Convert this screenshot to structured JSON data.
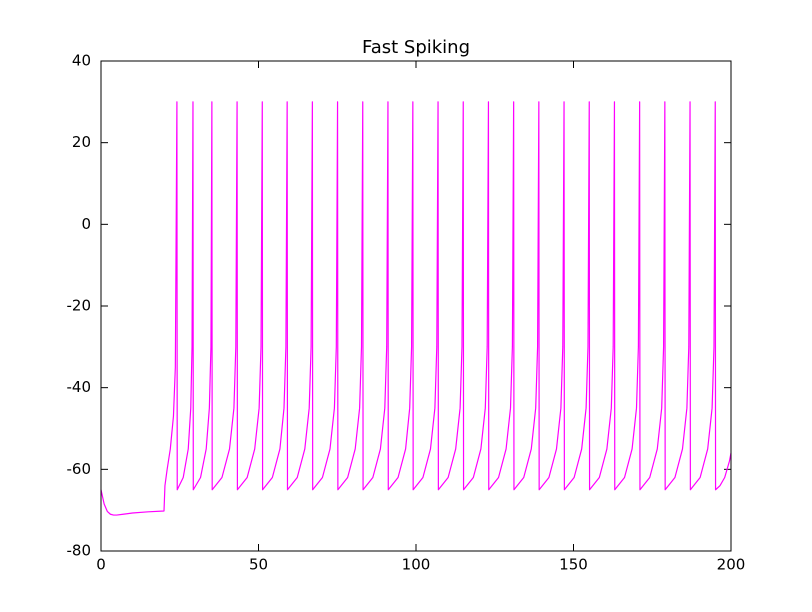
{
  "chart_data": {
    "type": "line",
    "title": "Fast Spiking",
    "x": [
      0,
      1,
      2,
      3,
      4,
      5,
      7,
      10,
      15,
      20,
      20.3,
      21,
      22,
      23,
      23.6,
      24.1,
      24.2,
      26.1,
      27.7,
      28.5,
      28.9,
      29.2,
      29.3,
      31.6,
      33.4,
      34.4,
      34.9,
      35.2,
      35.3,
      38.4,
      40.8,
      42.2,
      42.8,
      43.2,
      43.3,
      46.4,
      48.8,
      50.2,
      50.8,
      51.2,
      51.3,
      54.4,
      56.8,
      58.1,
      58.7,
      59.1,
      59.2,
      62.3,
      64.7,
      66.1,
      66.7,
      67.1,
      67.2,
      70.3,
      72.7,
      74.1,
      74.7,
      75.1,
      75.2,
      78.3,
      80.7,
      82.1,
      82.7,
      83.1,
      83.2,
      86.3,
      88.7,
      90.1,
      90.7,
      91.1,
      91.2,
      94.3,
      96.7,
      98.0,
      98.6,
      99.0,
      99.1,
      102.2,
      104.6,
      106.0,
      106.6,
      107.0,
      107.1,
      110.2,
      112.6,
      114.0,
      114.6,
      115.0,
      115.1,
      118.2,
      120.6,
      122.0,
      122.6,
      123.0,
      123.1,
      126.2,
      128.6,
      130.0,
      130.6,
      131.0,
      131.1,
      134.2,
      136.6,
      138.0,
      138.6,
      139.0,
      139.1,
      142.2,
      144.6,
      146.0,
      146.6,
      147.0,
      147.1,
      150.2,
      152.6,
      154.0,
      154.6,
      155.0,
      155.1,
      158.2,
      160.6,
      162.0,
      162.6,
      163.0,
      163.1,
      166.2,
      168.6,
      170.0,
      170.6,
      171.0,
      171.1,
      174.2,
      176.6,
      178.0,
      178.6,
      179.0,
      179.1,
      182.2,
      184.6,
      186.0,
      186.6,
      187.0,
      187.1,
      190.2,
      192.6,
      194.0,
      194.6,
      195.0,
      195.1,
      196.5,
      198,
      199.5,
      200
    ],
    "series": [
      {
        "color": "#ff00ff",
        "values": [
          -65,
          -68.5,
          -70.3,
          -71,
          -71.2,
          -71.2,
          -71,
          -70.7,
          -70.4,
          -70.2,
          -64,
          -60,
          -55,
          -47,
          -35,
          30,
          -65,
          -62,
          -55,
          -45,
          -30,
          30,
          -65,
          -62,
          -55,
          -45,
          -30,
          30,
          -65,
          -62,
          -55,
          -45,
          -30,
          30,
          -65,
          -62,
          -55,
          -45,
          -30,
          30,
          -65,
          -62,
          -55,
          -45,
          -30,
          30,
          -65,
          -62,
          -55,
          -45,
          -30,
          30,
          -65,
          -62,
          -55,
          -45,
          -30,
          30,
          -65,
          -62,
          -55,
          -45,
          -30,
          30,
          -65,
          -62,
          -55,
          -45,
          -30,
          30,
          -65,
          -62,
          -55,
          -45,
          -30,
          30,
          -65,
          -62,
          -55,
          -45,
          -30,
          30,
          -65,
          -62,
          -55,
          -45,
          -30,
          30,
          -65,
          -62,
          -55,
          -45,
          -30,
          30,
          -65,
          -62,
          -55,
          -45,
          -30,
          30,
          -65,
          -62,
          -55,
          -45,
          -30,
          30,
          -65,
          -62,
          -55,
          -45,
          -30,
          30,
          -65,
          -62,
          -55,
          -45,
          -30,
          30,
          -65,
          -62,
          -55,
          -45,
          -30,
          30,
          -65,
          -62,
          -55,
          -45,
          -30,
          30,
          -65,
          -62,
          -55,
          -45,
          -30,
          30,
          -65,
          -62,
          -55,
          -45,
          -30,
          30,
          -65,
          -62,
          -55,
          -45,
          -30,
          30,
          -65,
          -64,
          -62,
          -58,
          -56
        ]
      }
    ],
    "xlim": [
      0,
      200
    ],
    "xticks": [
      0,
      50,
      100,
      150,
      200
    ],
    "ylim": [
      -80,
      40
    ],
    "yticks": [
      -80,
      -60,
      -40,
      -20,
      0,
      20,
      40
    ],
    "grid": false
  }
}
